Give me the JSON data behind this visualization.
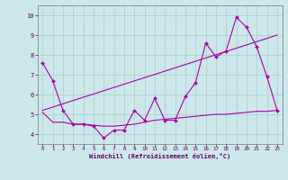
{
  "xlabel": "Windchill (Refroidissement éolien,°C)",
  "background_color": "#cce8ea",
  "grid_color": "#aacccc",
  "line_color": "#aa00aa",
  "xlim": [
    -0.5,
    23.5
  ],
  "ylim": [
    3.5,
    10.5
  ],
  "yticks": [
    4,
    5,
    6,
    7,
    8,
    9,
    10
  ],
  "xticks": [
    0,
    1,
    2,
    3,
    4,
    5,
    6,
    7,
    8,
    9,
    10,
    11,
    12,
    13,
    14,
    15,
    16,
    17,
    18,
    19,
    20,
    21,
    22,
    23
  ],
  "line1_x": [
    0,
    1,
    2,
    3,
    4,
    5,
    6,
    7,
    8,
    9,
    10,
    11,
    12,
    13,
    14,
    15,
    16,
    17,
    18,
    19,
    20,
    21,
    22,
    23
  ],
  "line1_y": [
    7.6,
    6.7,
    5.2,
    4.5,
    4.5,
    4.4,
    3.8,
    4.2,
    4.2,
    5.2,
    4.7,
    5.8,
    4.7,
    4.7,
    5.9,
    6.6,
    8.6,
    7.9,
    8.2,
    9.9,
    9.4,
    8.4,
    6.9,
    5.2
  ],
  "line2_x": [
    0,
    23
  ],
  "line2_y": [
    5.2,
    9.0
  ],
  "line3_x": [
    0,
    1,
    2,
    3,
    4,
    5,
    6,
    7,
    8,
    9,
    10,
    11,
    12,
    13,
    14,
    15,
    16,
    17,
    18,
    19,
    20,
    21,
    22,
    23
  ],
  "line3_y": [
    5.1,
    4.6,
    4.6,
    4.5,
    4.5,
    4.45,
    4.4,
    4.4,
    4.45,
    4.5,
    4.6,
    4.7,
    4.75,
    4.8,
    4.85,
    4.9,
    4.95,
    5.0,
    5.0,
    5.05,
    5.1,
    5.15,
    5.15,
    5.2
  ]
}
